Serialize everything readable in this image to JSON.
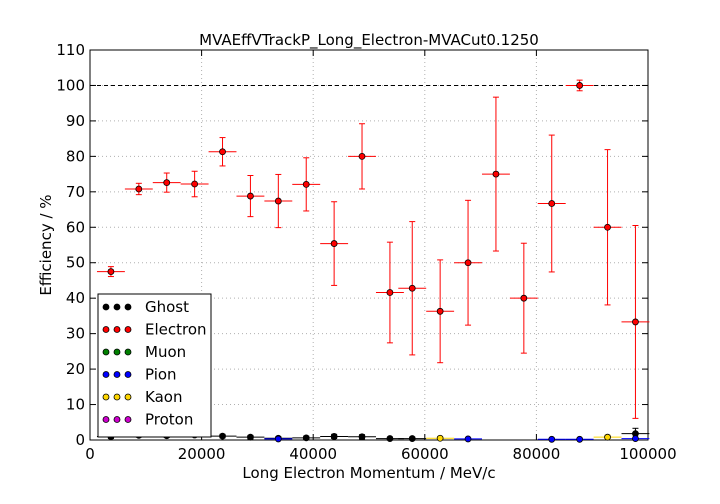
{
  "chart_data": {
    "type": "scatter",
    "title": "MVAEffVTrackP_Long_Electron-MVACut0.1250",
    "xlabel": "Long Electron Momentum / MeV/c",
    "ylabel": "Efficiency / %",
    "xlim": [
      0,
      100000
    ],
    "ylim": [
      0,
      110
    ],
    "xticks": [
      0,
      20000,
      40000,
      60000,
      80000,
      100000
    ],
    "yticks": [
      0,
      10,
      20,
      30,
      40,
      50,
      60,
      70,
      80,
      90,
      100,
      110
    ],
    "grid": true,
    "reference_line_y": 100,
    "legend_position": "lower-left",
    "bin_half_width": 2500,
    "series": [
      {
        "name": "Ghost",
        "color": "#000000",
        "points": [
          {
            "x": 3750,
            "y": 1.0,
            "err": 0.6
          },
          {
            "x": 8750,
            "y": 1.3,
            "err": 0.5
          },
          {
            "x": 13750,
            "y": 1.2,
            "err": 0.5
          },
          {
            "x": 18750,
            "y": 1.4,
            "err": 0.5
          },
          {
            "x": 23750,
            "y": 1.1,
            "err": 0.5
          },
          {
            "x": 28750,
            "y": 0.8,
            "err": 0.5
          },
          {
            "x": 33750,
            "y": 0.5,
            "err": 0.4
          },
          {
            "x": 38750,
            "y": 0.6,
            "err": 0.5
          },
          {
            "x": 43750,
            "y": 1.0,
            "err": 0.6
          },
          {
            "x": 48750,
            "y": 0.9,
            "err": 0.6
          },
          {
            "x": 53750,
            "y": 0.4,
            "err": 0.4
          },
          {
            "x": 57750,
            "y": 0.4,
            "err": 0.4
          },
          {
            "x": 97750,
            "y": 1.8,
            "err": 1.5
          }
        ]
      },
      {
        "name": "Electron",
        "color": "#ff0000",
        "points": [
          {
            "x": 3750,
            "y": 47.5,
            "err": 1.4
          },
          {
            "x": 8750,
            "y": 70.8,
            "err": 1.6
          },
          {
            "x": 13750,
            "y": 72.6,
            "err": 2.7
          },
          {
            "x": 18750,
            "y": 72.2,
            "err": 3.6
          },
          {
            "x": 23750,
            "y": 81.3,
            "err": 4.0
          },
          {
            "x": 28750,
            "y": 68.8,
            "err": 5.8
          },
          {
            "x": 33750,
            "y": 67.4,
            "err": 7.5
          },
          {
            "x": 38750,
            "y": 72.1,
            "err": 7.5
          },
          {
            "x": 43750,
            "y": 55.4,
            "err": 11.8
          },
          {
            "x": 48750,
            "y": 80.0,
            "err": 9.2
          },
          {
            "x": 53750,
            "y": 41.6,
            "err": 14.2
          },
          {
            "x": 57750,
            "y": 42.8,
            "err": 18.8
          },
          {
            "x": 62750,
            "y": 36.3,
            "err": 14.5
          },
          {
            "x": 67750,
            "y": 50.0,
            "err": 17.6
          },
          {
            "x": 72750,
            "y": 75.0,
            "err": 21.7
          },
          {
            "x": 77750,
            "y": 40.0,
            "err": 15.5
          },
          {
            "x": 82750,
            "y": 66.7,
            "err": 19.3
          },
          {
            "x": 87750,
            "y": 100.0,
            "err": 1.5
          },
          {
            "x": 92750,
            "y": 60.0,
            "err": 21.9
          },
          {
            "x": 97750,
            "y": 33.3,
            "err": 27.2
          }
        ]
      },
      {
        "name": "Muon",
        "color": "#008000",
        "points": []
      },
      {
        "name": "Pion",
        "color": "#0000ff",
        "points": [
          {
            "x": 33750,
            "y": 0.3,
            "err": 0.3
          },
          {
            "x": 67750,
            "y": 0.3,
            "err": 0.3
          },
          {
            "x": 82750,
            "y": 0.2,
            "err": 0.2
          },
          {
            "x": 87750,
            "y": 0.2,
            "err": 0.2
          },
          {
            "x": 97750,
            "y": 0.4,
            "err": 0.4
          }
        ]
      },
      {
        "name": "Kaon",
        "color": "#ffd700",
        "points": [
          {
            "x": 62750,
            "y": 0.5,
            "err": 0.5
          },
          {
            "x": 92750,
            "y": 0.8,
            "err": 0.6
          }
        ]
      },
      {
        "name": "Proton",
        "color": "#cc00cc",
        "points": []
      }
    ]
  }
}
